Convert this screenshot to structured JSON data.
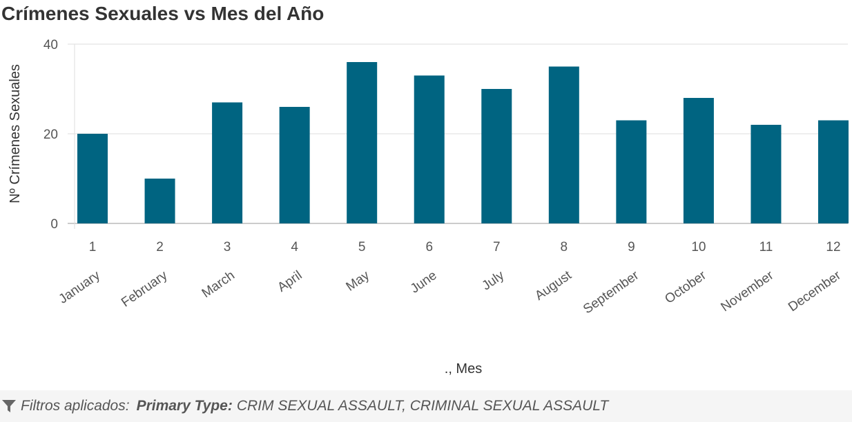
{
  "chart_data": {
    "type": "bar",
    "title": "Crímenes Sexuales vs Mes del Año",
    "xlabel": "., Mes",
    "ylabel": "Nº Crímenes Sexuales",
    "ylim": [
      0,
      40
    ],
    "yticks": [
      0,
      20,
      40
    ],
    "grid": true,
    "categories": [
      "1",
      "2",
      "3",
      "4",
      "5",
      "6",
      "7",
      "8",
      "9",
      "10",
      "11",
      "12"
    ],
    "category_names": [
      "January",
      "February",
      "March",
      "April",
      "May",
      "June",
      "July",
      "August",
      "September",
      "October",
      "November",
      "December"
    ],
    "values": [
      20,
      10,
      27,
      26,
      36,
      33,
      30,
      35,
      23,
      28,
      22,
      23
    ]
  },
  "colors": {
    "bar": "#006481",
    "grid": "#dddddd",
    "axis": "#bbbbbb",
    "footer_bg": "#f5f5f5"
  },
  "footer": {
    "icon": "filter-icon",
    "label": "Filtros aplicados:",
    "filter_key": "Primary Type:",
    "filter_values": "CRIM SEXUAL ASSAULT, CRIMINAL SEXUAL ASSAULT"
  }
}
